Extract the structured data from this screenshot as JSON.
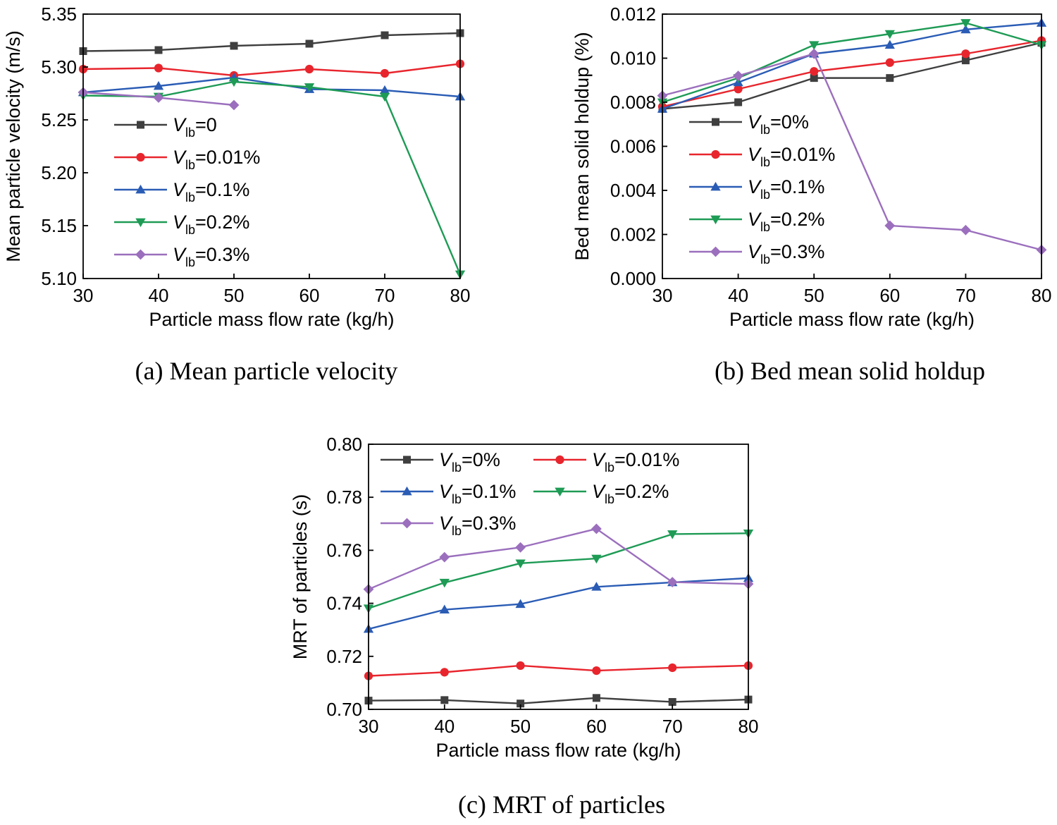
{
  "figure": {
    "captions": [
      "(a) Mean particle velocity",
      "(b) Bed mean solid holdup",
      "(c) MRT of particles"
    ]
  },
  "chart_data": [
    {
      "type": "line",
      "title": "(a) Mean particle velocity",
      "xlabel": "Particle mass flow rate (kg/h)",
      "ylabel": "Mean particle velocity (m/s)",
      "xlim": [
        30,
        80
      ],
      "ylim": [
        5.1,
        5.35
      ],
      "xticks": [
        30,
        40,
        50,
        60,
        70,
        80
      ],
      "yticks": [
        5.1,
        5.15,
        5.2,
        5.25,
        5.3,
        5.35
      ],
      "ytick_decimals": 2,
      "legend_position": "center-left",
      "series": [
        {
          "legend_prefix": "V",
          "legend_sub": "lb",
          "legend_suffix": "=0",
          "color": "#3f3f3f",
          "marker": "square",
          "x": [
            30,
            40,
            50,
            60,
            70,
            80
          ],
          "values": [
            5.315,
            5.316,
            5.32,
            5.322,
            5.33,
            5.332
          ]
        },
        {
          "legend_prefix": "V",
          "legend_sub": "lb",
          "legend_suffix": "=0.01%",
          "color": "#e8252d",
          "marker": "circle",
          "x": [
            30,
            40,
            50,
            60,
            70,
            80
          ],
          "values": [
            5.298,
            5.299,
            5.292,
            5.298,
            5.294,
            5.303
          ]
        },
        {
          "legend_prefix": "V",
          "legend_sub": "lb",
          "legend_suffix": "=0.1%",
          "color": "#2a5cb5",
          "marker": "triangle-up",
          "x": [
            30,
            40,
            50,
            60,
            70,
            80
          ],
          "values": [
            5.276,
            5.282,
            5.29,
            5.279,
            5.278,
            5.272
          ]
        },
        {
          "legend_prefix": "V",
          "legend_sub": "lb",
          "legend_suffix": "=0.2%",
          "color": "#1e9b55",
          "marker": "triangle-down",
          "x": [
            30,
            40,
            50,
            60,
            70,
            80
          ],
          "values": [
            5.273,
            5.272,
            5.286,
            5.281,
            5.272,
            5.104
          ]
        },
        {
          "legend_prefix": "V",
          "legend_sub": "lb",
          "legend_suffix": "=0.3%",
          "color": "#9b6fbd",
          "marker": "diamond",
          "x": [
            30,
            40,
            50
          ],
          "values": [
            5.276,
            5.271,
            5.264
          ]
        }
      ]
    },
    {
      "type": "line",
      "title": "(b) Bed mean solid holdup",
      "xlabel": "Particle mass flow rate (kg/h)",
      "ylabel": "Bed mean solid holdup (%)",
      "xlim": [
        30,
        80
      ],
      "ylim": [
        0.0,
        0.012
      ],
      "xticks": [
        30,
        40,
        50,
        60,
        70,
        80
      ],
      "yticks": [
        0.0,
        0.002,
        0.004,
        0.006,
        0.008,
        0.01,
        0.012
      ],
      "ytick_decimals": 3,
      "legend_position": "center-left",
      "series": [
        {
          "legend_prefix": "V",
          "legend_sub": "lb",
          "legend_suffix": "=0%",
          "color": "#3f3f3f",
          "marker": "square",
          "x": [
            30,
            40,
            50,
            60,
            70,
            80
          ],
          "values": [
            0.0077,
            0.008,
            0.0091,
            0.0091,
            0.0099,
            0.0107
          ]
        },
        {
          "legend_prefix": "V",
          "legend_sub": "lb",
          "legend_suffix": "=0.01%",
          "color": "#e8252d",
          "marker": "circle",
          "x": [
            30,
            40,
            50,
            60,
            70,
            80
          ],
          "values": [
            0.0078,
            0.0086,
            0.0094,
            0.0098,
            0.0102,
            0.0108
          ]
        },
        {
          "legend_prefix": "V",
          "legend_sub": "lb",
          "legend_suffix": "=0.1%",
          "color": "#2a5cb5",
          "marker": "triangle-up",
          "x": [
            30,
            40,
            50,
            60,
            70,
            80
          ],
          "values": [
            0.0077,
            0.0089,
            0.0102,
            0.0106,
            0.0113,
            0.0116
          ]
        },
        {
          "legend_prefix": "V",
          "legend_sub": "lb",
          "legend_suffix": "=0.2%",
          "color": "#1e9b55",
          "marker": "triangle-down",
          "x": [
            30,
            40,
            50,
            60,
            70,
            80
          ],
          "values": [
            0.008,
            0.0091,
            0.0106,
            0.0111,
            0.0116,
            0.0106
          ]
        },
        {
          "legend_prefix": "V",
          "legend_sub": "lb",
          "legend_suffix": "=0.3%",
          "color": "#9b6fbd",
          "marker": "diamond",
          "x": [
            30,
            40,
            50,
            60,
            70,
            80
          ],
          "values": [
            0.0083,
            0.0092,
            0.0102,
            0.0024,
            0.0022,
            0.0013
          ]
        }
      ]
    },
    {
      "type": "line",
      "title": "(c) MRT of particles",
      "xlabel": "Particle mass flow rate (kg/h)",
      "ylabel": "MRT of particles (s)",
      "xlim": [
        30,
        80
      ],
      "ylim": [
        0.7,
        0.8
      ],
      "xticks": [
        30,
        40,
        50,
        60,
        70,
        80
      ],
      "yticks": [
        0.7,
        0.72,
        0.74,
        0.76,
        0.78,
        0.8
      ],
      "ytick_decimals": 2,
      "legend_position": "top-left, two columns",
      "series": [
        {
          "legend_prefix": "V",
          "legend_sub": "lb",
          "legend_suffix": "=0%",
          "color": "#3f3f3f",
          "marker": "square",
          "x": [
            30,
            40,
            50,
            60,
            70,
            80
          ],
          "values": [
            0.7033,
            0.7035,
            0.7022,
            0.7043,
            0.7028,
            0.7037
          ]
        },
        {
          "legend_prefix": "V",
          "legend_sub": "lb",
          "legend_suffix": "=0.01%",
          "color": "#e8252d",
          "marker": "circle",
          "x": [
            30,
            40,
            50,
            60,
            70,
            80
          ],
          "values": [
            0.7126,
            0.714,
            0.7165,
            0.7146,
            0.7157,
            0.7165
          ]
        },
        {
          "legend_prefix": "V",
          "legend_sub": "lb",
          "legend_suffix": "=0.1%",
          "color": "#2a5cb5",
          "marker": "triangle-up",
          "x": [
            30,
            40,
            50,
            60,
            70,
            80
          ],
          "values": [
            0.7303,
            0.7376,
            0.7397,
            0.7462,
            0.7479,
            0.7495
          ]
        },
        {
          "legend_prefix": "V",
          "legend_sub": "lb",
          "legend_suffix": "=0.2%",
          "color": "#1e9b55",
          "marker": "triangle-down",
          "x": [
            30,
            40,
            50,
            60,
            70,
            80
          ],
          "values": [
            0.7381,
            0.7478,
            0.7551,
            0.7569,
            0.7661,
            0.7664
          ]
        },
        {
          "legend_prefix": "V",
          "legend_sub": "lb",
          "legend_suffix": "=0.3%",
          "color": "#9b6fbd",
          "marker": "diamond",
          "x": [
            30,
            40,
            50,
            60,
            70,
            80
          ],
          "values": [
            0.7453,
            0.7574,
            0.7611,
            0.7681,
            0.748,
            0.7473
          ]
        }
      ]
    }
  ]
}
